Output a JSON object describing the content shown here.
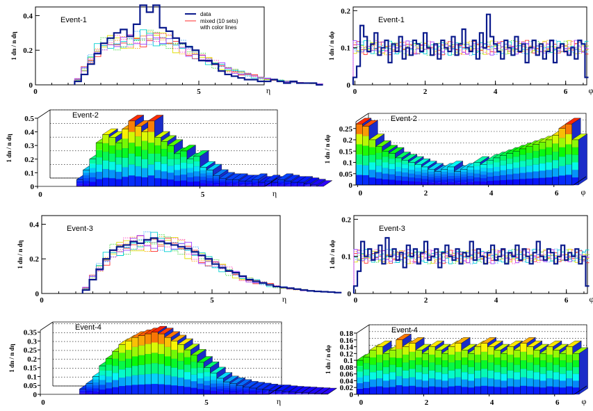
{
  "chart_data": [
    {
      "id": "p1",
      "type": "histogram-2d",
      "event_label": "Event-1",
      "xvar": "η",
      "ylabel_text": "1 dn / n dη",
      "xlim": [
        0,
        7
      ],
      "ylim": [
        0,
        0.45
      ],
      "xticks": [
        0,
        5
      ],
      "yticks": [
        0,
        0.2,
        0.4
      ],
      "x_start": 1.2,
      "bin_width": 0.2,
      "legend": {
        "title": "",
        "entries": [
          "data",
          "mixed (10 sets)",
          "with color lines"
        ]
      },
      "data": [
        0.02,
        0.06,
        0.12,
        0.18,
        0.24,
        0.27,
        0.3,
        0.32,
        0.28,
        0.35,
        0.46,
        0.42,
        0.46,
        0.33,
        0.31,
        0.27,
        0.24,
        0.22,
        0.2,
        0.14,
        0.14,
        0.12,
        0.08,
        0.06,
        0.05,
        0.04,
        0.03,
        0.03,
        0.02,
        0.02,
        0.03,
        0.02,
        0.01,
        0.02,
        0.01,
        0.01,
        0.01,
        0.0
      ],
      "mixed": [
        0.03,
        0.09,
        0.15,
        0.2,
        0.23,
        0.25,
        0.24,
        0.24,
        0.25,
        0.26,
        0.27,
        0.28,
        0.27,
        0.26,
        0.25,
        0.23,
        0.22,
        0.2,
        0.18,
        0.16,
        0.14,
        0.12,
        0.11,
        0.09,
        0.08,
        0.07,
        0.06,
        0.05,
        0.04,
        0.035,
        0.03,
        0.025,
        0.02,
        0.015,
        0.012,
        0.01,
        0.008,
        0.005
      ]
    },
    {
      "id": "p2",
      "type": "histogram-2d",
      "event_label": "Event-1",
      "xvar": "φ",
      "ylabel_text": "1 dn / n dφ",
      "xlim": [
        -0.05,
        6.6
      ],
      "ylim": [
        0,
        0.21
      ],
      "xticks": [
        0,
        2,
        4,
        6
      ],
      "yticks": [
        0,
        0.1,
        0.2
      ],
      "x_start": -0.05,
      "bin_width": 0.1,
      "data": [
        0.02,
        0.05,
        0.16,
        0.13,
        0.09,
        0.11,
        0.14,
        0.08,
        0.1,
        0.12,
        0.06,
        0.11,
        0.09,
        0.13,
        0.07,
        0.1,
        0.08,
        0.12,
        0.11,
        0.09,
        0.14,
        0.1,
        0.08,
        0.11,
        0.07,
        0.12,
        0.1,
        0.09,
        0.13,
        0.08,
        0.11,
        0.15,
        0.1,
        0.09,
        0.12,
        0.07,
        0.14,
        0.1,
        0.19,
        0.13,
        0.11,
        0.09,
        0.07,
        0.12,
        0.1,
        0.08,
        0.13,
        0.09,
        0.11,
        0.06,
        0.1,
        0.12,
        0.08,
        0.11,
        0.07,
        0.09,
        0.12,
        0.06,
        0.1,
        0.11,
        0.09,
        0.08,
        0.1,
        0.07,
        0.12,
        0.11,
        0.02
      ],
      "mixed": [
        0.1,
        0.1,
        0.1,
        0.1,
        0.1,
        0.1,
        0.1,
        0.1,
        0.1,
        0.1,
        0.1,
        0.1,
        0.1,
        0.1,
        0.1,
        0.1,
        0.1,
        0.1,
        0.1,
        0.1,
        0.1,
        0.1,
        0.1,
        0.1,
        0.1,
        0.1,
        0.1,
        0.1,
        0.1,
        0.1,
        0.1,
        0.1,
        0.1,
        0.1,
        0.1,
        0.1,
        0.1,
        0.1,
        0.1,
        0.1,
        0.1,
        0.1,
        0.1,
        0.1,
        0.1,
        0.1,
        0.1,
        0.1,
        0.1,
        0.1,
        0.1,
        0.1,
        0.1,
        0.1,
        0.1,
        0.1,
        0.1,
        0.1,
        0.1,
        0.1,
        0.1,
        0.1,
        0.1,
        0.1,
        0.1,
        0.1,
        0.1
      ]
    },
    {
      "id": "p3",
      "type": "histogram-3d",
      "event_label": "Event-2",
      "xvar": "η",
      "ylabel_text": "1 dn / n dη",
      "xlim": [
        0,
        7
      ],
      "ylim": [
        0,
        0.5
      ],
      "xticks": [
        0,
        5
      ],
      "yticks": [
        0,
        0.1,
        0.2,
        0.3,
        0.4,
        0.5
      ],
      "ytick_labels": [
        "0",
        "0.1",
        "0.2",
        "0.3",
        "0.4",
        "0.5"
      ],
      "x_start": 1.2,
      "bin_width": 0.2,
      "data": [
        0.05,
        0.12,
        0.2,
        0.32,
        0.38,
        0.36,
        0.32,
        0.42,
        0.48,
        0.44,
        0.4,
        0.48,
        0.36,
        0.33,
        0.3,
        0.24,
        0.26,
        0.2,
        0.22,
        0.14,
        0.12,
        0.08,
        0.06,
        0.05,
        0.05,
        0.04,
        0.04,
        0.05,
        0.03,
        0.04,
        0.03,
        0.05,
        0.04,
        0.03,
        0.03,
        0.02,
        0.01,
        0.0
      ]
    },
    {
      "id": "p4",
      "type": "histogram-3d",
      "event_label": "Event-2",
      "xvar": "φ",
      "ylabel_text": "1 dn / n dφ",
      "xlim": [
        -0.05,
        6.6
      ],
      "ylim": [
        0,
        0.28
      ],
      "xticks": [
        0,
        2,
        4,
        6
      ],
      "yticks": [
        0,
        0.05,
        0.1,
        0.15,
        0.2,
        0.25
      ],
      "ytick_labels": [
        "0",
        "0.05",
        "0.1",
        "0.15",
        "0.2",
        "0.25"
      ],
      "x_start": -0.05,
      "bin_width": 0.2,
      "data": [
        0.27,
        0.26,
        0.2,
        0.17,
        0.15,
        0.14,
        0.12,
        0.11,
        0.1,
        0.09,
        0.08,
        0.07,
        0.06,
        0.07,
        0.08,
        0.06,
        0.07,
        0.08,
        0.1,
        0.09,
        0.11,
        0.12,
        0.13,
        0.14,
        0.15,
        0.16,
        0.17,
        0.18,
        0.19,
        0.2,
        0.22,
        0.25,
        0.27,
        0.2
      ]
    },
    {
      "id": "p5",
      "type": "histogram-2d",
      "event_label": "Event-3",
      "xvar": "η",
      "ylabel_text": "1 dn / n dη",
      "xlim": [
        0,
        7
      ],
      "ylim": [
        0,
        0.45
      ],
      "xticks": [
        0,
        5
      ],
      "yticks": [
        0,
        0.2,
        0.4
      ],
      "x_start": 1.2,
      "bin_width": 0.2,
      "data": [
        0.02,
        0.08,
        0.14,
        0.2,
        0.25,
        0.27,
        0.28,
        0.3,
        0.29,
        0.31,
        0.32,
        0.3,
        0.29,
        0.28,
        0.27,
        0.26,
        0.24,
        0.22,
        0.2,
        0.17,
        0.15,
        0.13,
        0.12,
        0.1,
        0.08,
        0.07,
        0.06,
        0.05,
        0.04,
        0.035,
        0.03,
        0.025,
        0.02,
        0.015,
        0.012,
        0.01,
        0.008,
        0.005
      ],
      "mixed": [
        0.03,
        0.09,
        0.15,
        0.2,
        0.24,
        0.26,
        0.27,
        0.28,
        0.29,
        0.3,
        0.3,
        0.3,
        0.29,
        0.28,
        0.27,
        0.25,
        0.23,
        0.21,
        0.19,
        0.17,
        0.15,
        0.13,
        0.11,
        0.09,
        0.08,
        0.07,
        0.06,
        0.05,
        0.04,
        0.035,
        0.03,
        0.025,
        0.02,
        0.015,
        0.012,
        0.01,
        0.008,
        0.005
      ]
    },
    {
      "id": "p6",
      "type": "histogram-2d",
      "event_label": "Event-3",
      "xvar": "φ",
      "ylabel_text": "1 dn / n dφ",
      "xlim": [
        -0.05,
        6.6
      ],
      "ylim": [
        0,
        0.21
      ],
      "xticks": [
        0,
        2,
        4,
        6
      ],
      "yticks": [
        0,
        0.1,
        0.2
      ],
      "x_start": -0.05,
      "bin_width": 0.1,
      "data": [
        0.02,
        0.06,
        0.14,
        0.1,
        0.12,
        0.09,
        0.11,
        0.13,
        0.08,
        0.15,
        0.1,
        0.12,
        0.09,
        0.11,
        0.07,
        0.13,
        0.1,
        0.12,
        0.08,
        0.11,
        0.14,
        0.09,
        0.1,
        0.12,
        0.07,
        0.11,
        0.13,
        0.1,
        0.09,
        0.12,
        0.08,
        0.11,
        0.1,
        0.14,
        0.09,
        0.12,
        0.1,
        0.08,
        0.11,
        0.13,
        0.09,
        0.1,
        0.12,
        0.08,
        0.11,
        0.1,
        0.13,
        0.09,
        0.12,
        0.1,
        0.08,
        0.11,
        0.14,
        0.1,
        0.09,
        0.12,
        0.11,
        0.08,
        0.1,
        0.13,
        0.09,
        0.11,
        0.1,
        0.12,
        0.08,
        0.1,
        0.02
      ],
      "mixed": [
        0.1,
        0.1,
        0.1,
        0.1,
        0.1,
        0.1,
        0.1,
        0.1,
        0.1,
        0.1,
        0.1,
        0.1,
        0.1,
        0.1,
        0.1,
        0.1,
        0.1,
        0.1,
        0.1,
        0.1,
        0.1,
        0.1,
        0.1,
        0.1,
        0.1,
        0.1,
        0.1,
        0.1,
        0.1,
        0.1,
        0.1,
        0.1,
        0.1,
        0.1,
        0.1,
        0.1,
        0.1,
        0.1,
        0.1,
        0.1,
        0.1,
        0.1,
        0.1,
        0.1,
        0.1,
        0.1,
        0.1,
        0.1,
        0.1,
        0.1,
        0.1,
        0.1,
        0.1,
        0.1,
        0.1,
        0.1,
        0.1,
        0.1,
        0.1,
        0.1,
        0.1,
        0.1,
        0.1,
        0.1,
        0.1,
        0.1,
        0.1
      ]
    },
    {
      "id": "p7",
      "type": "histogram-3d",
      "event_label": "Event-4",
      "xvar": "η",
      "ylabel_text": "1 dn / n dη",
      "xlim": [
        0,
        7
      ],
      "ylim": [
        0,
        0.36
      ],
      "xticks": [
        0,
        5
      ],
      "yticks": [
        0,
        0.05,
        0.1,
        0.15,
        0.2,
        0.25,
        0.3,
        0.35
      ],
      "ytick_labels": [
        "0",
        "0.05",
        "0.1",
        "0.15",
        "0.2",
        "0.25",
        "0.3",
        "0.35"
      ],
      "x_start": 1.2,
      "bin_width": 0.2,
      "data": [
        0.03,
        0.06,
        0.1,
        0.16,
        0.2,
        0.24,
        0.28,
        0.3,
        0.32,
        0.33,
        0.34,
        0.35,
        0.34,
        0.32,
        0.3,
        0.28,
        0.25,
        0.22,
        0.18,
        0.15,
        0.12,
        0.09,
        0.07,
        0.06,
        0.05,
        0.04,
        0.035,
        0.03,
        0.025,
        0.02,
        0.02,
        0.015,
        0.012,
        0.01,
        0.008,
        0.006,
        0.004,
        0.002
      ]
    },
    {
      "id": "p8",
      "type": "histogram-3d",
      "event_label": "Event-4",
      "xvar": "φ",
      "ylabel_text": "1 dn / n dφ",
      "xlim": [
        -0.05,
        6.6
      ],
      "ylim": [
        0,
        0.18
      ],
      "xticks": [
        0,
        2,
        4,
        6
      ],
      "yticks": [
        0,
        0.02,
        0.04,
        0.06,
        0.08,
        0.1,
        0.12,
        0.14,
        0.16,
        0.18
      ],
      "ytick_labels": [
        "0",
        "0.02",
        "0.04",
        "0.06",
        "0.08",
        "0.1",
        "0.12",
        "0.14",
        "0.16",
        "0.18"
      ],
      "x_start": -0.05,
      "bin_width": 0.2,
      "data": [
        0.1,
        0.11,
        0.13,
        0.14,
        0.12,
        0.13,
        0.16,
        0.14,
        0.15,
        0.13,
        0.12,
        0.14,
        0.13,
        0.12,
        0.14,
        0.15,
        0.13,
        0.12,
        0.14,
        0.15,
        0.14,
        0.13,
        0.12,
        0.14,
        0.13,
        0.15,
        0.14,
        0.13,
        0.12,
        0.14,
        0.13,
        0.12,
        0.14,
        0.12
      ]
    }
  ]
}
